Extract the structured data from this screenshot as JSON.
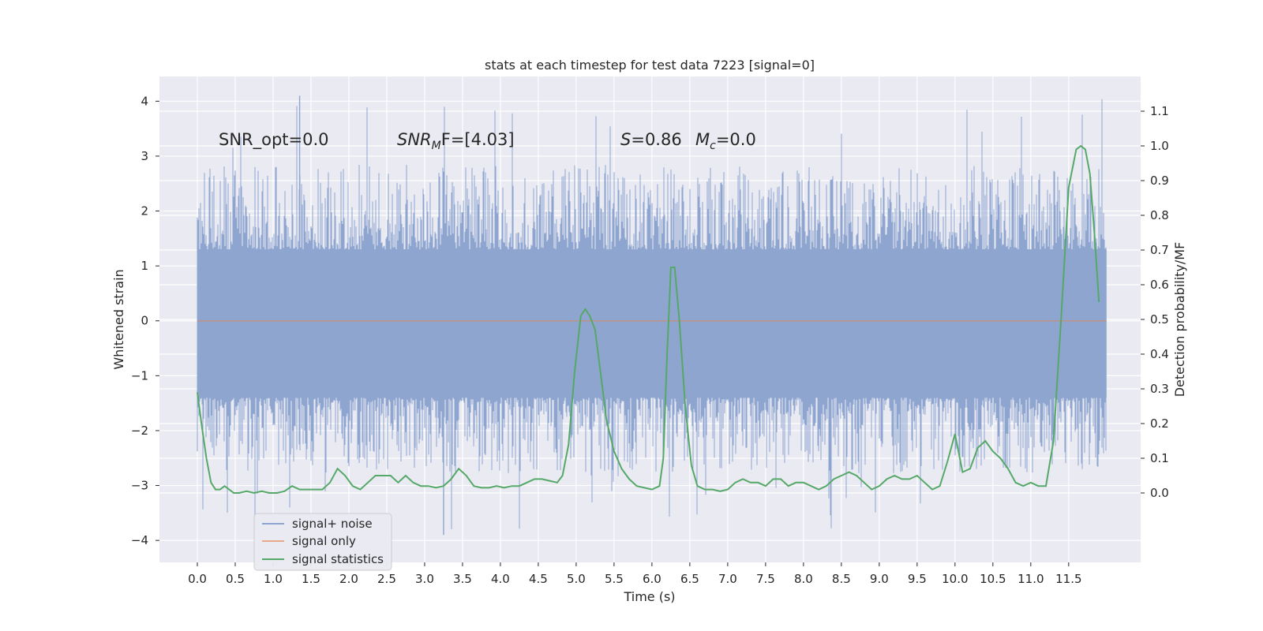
{
  "chart_data": {
    "type": "line",
    "title": "stats at each timestep for test data 7223 [signal=0]",
    "xlabel": "Time (s)",
    "ylabel": "Whitened strain",
    "ylabel_right": "Detection probability/MF",
    "xlim": [
      -0.5,
      12.45
    ],
    "ylim": [
      -4.4,
      4.45
    ],
    "ylim_right": [
      -0.2,
      1.2
    ],
    "x_ticks": [
      "0.0",
      "0.5",
      "1.0",
      "1.5",
      "2.0",
      "2.5",
      "3.0",
      "3.5",
      "4.0",
      "4.5",
      "5.0",
      "5.5",
      "6.0",
      "6.5",
      "7.0",
      "7.5",
      "8.0",
      "8.5",
      "9.0",
      "9.5",
      "10.0",
      "10.5",
      "11.0",
      "11.5"
    ],
    "y_ticks": [
      "4",
      "3",
      "2",
      "1",
      "0",
      "−1",
      "−2",
      "−3",
      "−4"
    ],
    "y_right_ticks": [
      "1.1",
      "1.0",
      "0.9",
      "0.8",
      "0.7",
      "0.6",
      "0.5",
      "0.4",
      "0.3",
      "0.2",
      "0.1",
      "0.0"
    ],
    "grid": true,
    "legend_position": "lower-left",
    "annotations": {
      "snr_opt": "SNR_opt=0.0",
      "snr_mf_sym": "SNR",
      "snr_mf_sub": "M",
      "snr_mf_tail": "F=[4.03]",
      "s_sym": "S",
      "s_val": "=0.86",
      "mc_sym": "M",
      "mc_sub": "c",
      "mc_val": "=0.0"
    },
    "series": [
      {
        "name": "signal+ noise",
        "color": "#8ea5d0",
        "t_range": [
          0.0,
          12.0
        ],
        "envelope": "noise band, typical range approx -2.5 to 2.5 with spikes up to 4.1 and down to -3.9",
        "approx_range": [
          -3.9,
          4.1
        ]
      },
      {
        "name": "signal only",
        "color": "#dd8452",
        "t_range": [
          0.0,
          12.0
        ],
        "values_const": 0.0
      },
      {
        "name": "signal statistics",
        "color": "#55a868",
        "axis": "right",
        "points": [
          [
            0.0,
            0.29
          ],
          [
            0.06,
            0.19
          ],
          [
            0.12,
            0.1
          ],
          [
            0.18,
            0.03
          ],
          [
            0.24,
            0.01
          ],
          [
            0.3,
            0.01
          ],
          [
            0.36,
            0.02
          ],
          [
            0.42,
            0.01
          ],
          [
            0.48,
            0.0
          ],
          [
            0.55,
            0.0
          ],
          [
            0.65,
            0.005
          ],
          [
            0.75,
            0.0
          ],
          [
            0.85,
            0.005
          ],
          [
            0.95,
            0.0
          ],
          [
            1.05,
            0.0
          ],
          [
            1.15,
            0.005
          ],
          [
            1.25,
            0.02
          ],
          [
            1.35,
            0.01
          ],
          [
            1.45,
            0.01
          ],
          [
            1.55,
            0.01
          ],
          [
            1.65,
            0.01
          ],
          [
            1.75,
            0.03
          ],
          [
            1.85,
            0.07
          ],
          [
            1.95,
            0.05
          ],
          [
            2.05,
            0.02
          ],
          [
            2.15,
            0.01
          ],
          [
            2.25,
            0.03
          ],
          [
            2.35,
            0.05
          ],
          [
            2.45,
            0.05
          ],
          [
            2.55,
            0.05
          ],
          [
            2.65,
            0.03
          ],
          [
            2.75,
            0.05
          ],
          [
            2.85,
            0.03
          ],
          [
            2.95,
            0.02
          ],
          [
            3.05,
            0.02
          ],
          [
            3.15,
            0.015
          ],
          [
            3.25,
            0.02
          ],
          [
            3.35,
            0.04
          ],
          [
            3.45,
            0.07
          ],
          [
            3.55,
            0.05
          ],
          [
            3.65,
            0.02
          ],
          [
            3.75,
            0.015
          ],
          [
            3.85,
            0.015
          ],
          [
            3.95,
            0.02
          ],
          [
            4.05,
            0.015
          ],
          [
            4.15,
            0.02
          ],
          [
            4.25,
            0.02
          ],
          [
            4.35,
            0.03
          ],
          [
            4.45,
            0.04
          ],
          [
            4.55,
            0.04
          ],
          [
            4.65,
            0.035
          ],
          [
            4.75,
            0.03
          ],
          [
            4.82,
            0.05
          ],
          [
            4.9,
            0.14
          ],
          [
            4.98,
            0.35
          ],
          [
            5.06,
            0.51
          ],
          [
            5.12,
            0.53
          ],
          [
            5.18,
            0.51
          ],
          [
            5.25,
            0.47
          ],
          [
            5.32,
            0.35
          ],
          [
            5.4,
            0.21
          ],
          [
            5.5,
            0.12
          ],
          [
            5.6,
            0.07
          ],
          [
            5.7,
            0.04
          ],
          [
            5.8,
            0.02
          ],
          [
            5.9,
            0.015
          ],
          [
            6.0,
            0.01
          ],
          [
            6.1,
            0.02
          ],
          [
            6.15,
            0.1
          ],
          [
            6.2,
            0.4
          ],
          [
            6.25,
            0.65
          ],
          [
            6.3,
            0.65
          ],
          [
            6.36,
            0.5
          ],
          [
            6.44,
            0.25
          ],
          [
            6.52,
            0.08
          ],
          [
            6.6,
            0.02
          ],
          [
            6.7,
            0.01
          ],
          [
            6.8,
            0.01
          ],
          [
            6.9,
            0.005
          ],
          [
            7.0,
            0.01
          ],
          [
            7.1,
            0.03
          ],
          [
            7.2,
            0.04
          ],
          [
            7.3,
            0.03
          ],
          [
            7.4,
            0.03
          ],
          [
            7.5,
            0.02
          ],
          [
            7.6,
            0.04
          ],
          [
            7.7,
            0.04
          ],
          [
            7.8,
            0.02
          ],
          [
            7.9,
            0.03
          ],
          [
            8.0,
            0.03
          ],
          [
            8.1,
            0.02
          ],
          [
            8.2,
            0.01
          ],
          [
            8.3,
            0.02
          ],
          [
            8.4,
            0.04
          ],
          [
            8.5,
            0.05
          ],
          [
            8.6,
            0.06
          ],
          [
            8.7,
            0.05
          ],
          [
            8.8,
            0.03
          ],
          [
            8.9,
            0.01
          ],
          [
            9.0,
            0.02
          ],
          [
            9.1,
            0.04
          ],
          [
            9.2,
            0.05
          ],
          [
            9.3,
            0.04
          ],
          [
            9.4,
            0.04
          ],
          [
            9.5,
            0.05
          ],
          [
            9.6,
            0.03
          ],
          [
            9.7,
            0.01
          ],
          [
            9.8,
            0.02
          ],
          [
            9.9,
            0.09
          ],
          [
            10.0,
            0.17
          ],
          [
            10.1,
            0.06
          ],
          [
            10.2,
            0.07
          ],
          [
            10.3,
            0.13
          ],
          [
            10.4,
            0.15
          ],
          [
            10.5,
            0.12
          ],
          [
            10.6,
            0.1
          ],
          [
            10.7,
            0.07
          ],
          [
            10.8,
            0.03
          ],
          [
            10.9,
            0.02
          ],
          [
            11.0,
            0.03
          ],
          [
            11.1,
            0.02
          ],
          [
            11.2,
            0.02
          ],
          [
            11.3,
            0.15
          ],
          [
            11.4,
            0.5
          ],
          [
            11.5,
            0.88
          ],
          [
            11.6,
            0.99
          ],
          [
            11.66,
            1.0
          ],
          [
            11.72,
            0.99
          ],
          [
            11.78,
            0.92
          ],
          [
            11.84,
            0.75
          ],
          [
            11.9,
            0.55
          ]
        ]
      }
    ]
  }
}
